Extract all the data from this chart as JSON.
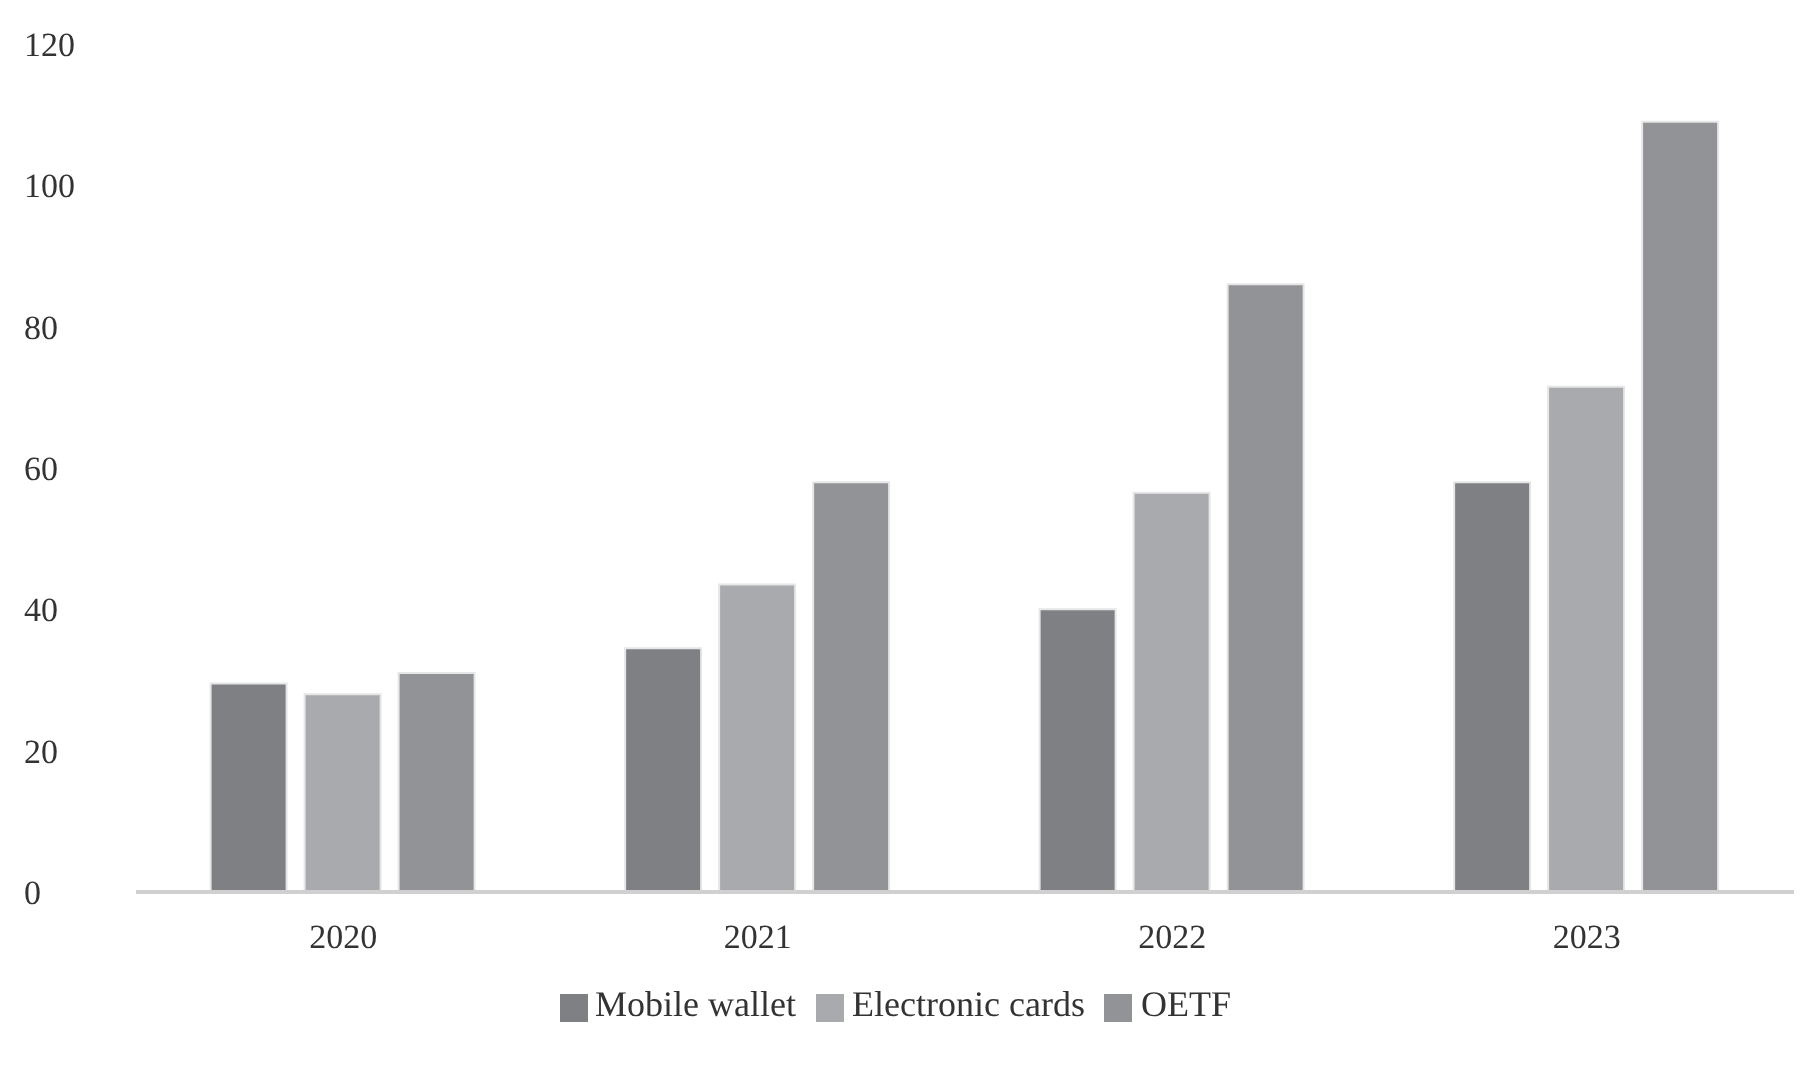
{
  "chart_data": {
    "type": "bar",
    "categories": [
      "2020",
      "2021",
      "2022",
      "2023"
    ],
    "series": [
      {
        "name": "Mobile wallet",
        "color": "#7f8084",
        "values": [
          29.5,
          34.5,
          40,
          58
        ]
      },
      {
        "name": "Electronic cards",
        "color": "#a9aaad",
        "values": [
          28,
          43.5,
          56.5,
          71.5
        ]
      },
      {
        "name": "OETF",
        "color": "#929397",
        "values": [
          31,
          58,
          86,
          109
        ]
      }
    ],
    "ylim": [
      0,
      120
    ],
    "yticks": [
      0,
      20,
      40,
      60,
      80,
      100,
      120
    ],
    "grid": false,
    "legend": "bottom"
  }
}
